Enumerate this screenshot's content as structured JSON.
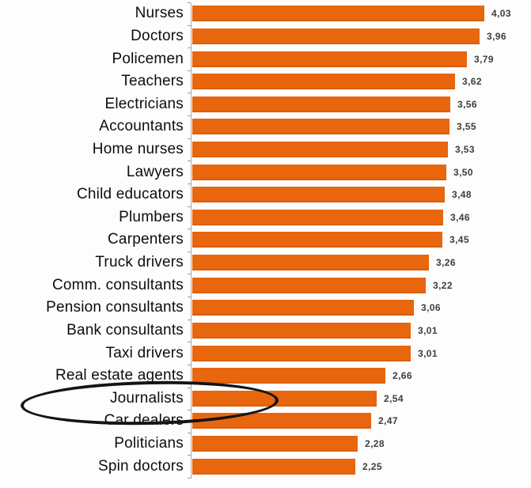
{
  "chart_data": {
    "type": "bar",
    "orientation": "horizontal",
    "title": "",
    "xlabel": "",
    "ylabel": "",
    "xlim": [
      0,
      4.3
    ],
    "grid": false,
    "legend": null,
    "bar_color": "#E8660E",
    "value_label_color": "#3D3D3D",
    "category_label_color": "#0D0D0D",
    "axis_color": "#ABABAB",
    "categories": [
      "Nurses",
      "Doctors",
      "Policemen",
      "Teachers",
      "Electricians",
      "Accountants",
      "Home nurses",
      "Lawyers",
      "Child educators",
      "Plumbers",
      "Carpenters",
      "Truck drivers",
      "Comm. consultants",
      "Pension consultants",
      "Bank consultants",
      "Taxi drivers",
      "Real estate agents",
      "Journalists",
      "Car dealers",
      "Politicians",
      "Spin doctors"
    ],
    "values": [
      4.03,
      3.96,
      3.79,
      3.62,
      3.56,
      3.55,
      3.53,
      3.5,
      3.48,
      3.46,
      3.45,
      3.26,
      3.22,
      3.06,
      3.01,
      3.01,
      2.66,
      2.54,
      2.47,
      2.28,
      2.25
    ],
    "value_labels": [
      "4,03",
      "3,96",
      "3,79",
      "3,62",
      "3,56",
      "3,55",
      "3,53",
      "3,50",
      "3,48",
      "3,46",
      "3,45",
      "3,26",
      "3,22",
      "3,06",
      "3,01",
      "3,01",
      "2,66",
      "2,54",
      "2,47",
      "2,28",
      "2,25"
    ],
    "annotation": {
      "shape": "ellipse",
      "color": "#141414",
      "target_category": "Journalists",
      "note": "hand-drawn oval circling the Journalists row label"
    }
  }
}
